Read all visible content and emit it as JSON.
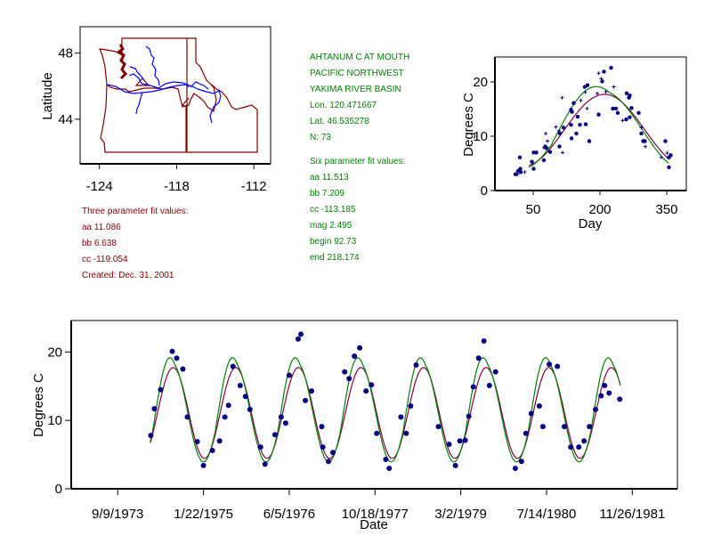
{
  "site": {
    "name": "AHTANUM C AT MOUTH",
    "region": "PACIFIC NORTHWEST",
    "basin": "YAKIMA RIVER BASIN",
    "lon": "Lon. 120.471667",
    "lat": "Lat. 46.535278",
    "n": "N: 73"
  },
  "three_param": {
    "title": "Three parameter fit values:",
    "aa": "aa 11.086",
    "bb": "bb 6.638",
    "cc": "cc -119.054",
    "created": "Created:   Dec. 31, 2001",
    "values": {
      "aa": 11.086,
      "bb": 6.638,
      "cc": -119.054
    }
  },
  "six_param": {
    "title": "Six parameter fit values:",
    "aa": "aa 11.513",
    "bb": "bb 7.209",
    "cc": "cc -113.185",
    "mag": "mag 2.495",
    "begin": "begin 92.73",
    "end": "end 218.174",
    "values": {
      "aa": 11.513,
      "bb": 7.209,
      "cc": -113.185,
      "mag": 2.495,
      "begin": 92.73,
      "end": 218.174
    }
  },
  "colors": {
    "three_param_curve": "#800040",
    "six_param_curve": "#008000",
    "points": "#000080",
    "state_borders": "#800000",
    "rivers": "#0000ff"
  },
  "chart_data": [
    {
      "type": "map",
      "title": "",
      "xlabel": "",
      "ylabel": "Latitude",
      "x_ticks": [
        "-124",
        "-118",
        "-112"
      ],
      "x_tick_values": [
        -124,
        -118,
        -112
      ],
      "y_ticks": [
        "48",
        "44"
      ],
      "y_tick_values": [
        48,
        44
      ],
      "xlim": [
        -125.5,
        -110.7
      ],
      "ylim": [
        41.3,
        49.6
      ],
      "features": [
        "Washington state outline",
        "Oregon state outline",
        "Idaho state outline",
        "Columbia and Yakima river network",
        "site marker triangle"
      ],
      "site_marker": {
        "lon": -120.47,
        "lat": 46.54
      }
    },
    {
      "type": "scatter",
      "title": "",
      "xlabel": "Day",
      "ylabel": "Degrees C",
      "x_ticks": [
        "50",
        "200",
        "350"
      ],
      "x_tick_values": [
        50,
        200,
        350
      ],
      "y_ticks": [
        "0",
        "10",
        "20"
      ],
      "y_tick_values": [
        0,
        10,
        20
      ],
      "xlim": [
        -36,
        394
      ],
      "ylim": [
        0,
        24.6
      ],
      "series_source": "points folded by day of year from time series below",
      "curves": [
        "three-parameter fit",
        "six-parameter fit"
      ],
      "curve_xrange": [
        40,
        355
      ]
    },
    {
      "type": "scatter",
      "title": "",
      "xlabel": "Date",
      "ylabel": "Degrees C",
      "x_ticks": [
        "9/9/1973",
        "1/22/1975",
        "6/5/1976",
        "10/18/1977",
        "3/2/1979",
        "7/14/1980",
        "11/26/1981"
      ],
      "x_tick_offsets_days": [
        0,
        500,
        1000,
        1500,
        2000,
        2500,
        3000
      ],
      "y_ticks": [
        "0",
        "10",
        "20"
      ],
      "y_tick_values": [
        0,
        10,
        20
      ],
      "xlim_days": [
        -271,
        3263
      ],
      "ylim": [
        0,
        24.6
      ],
      "origin_date": "9/9/1973",
      "origin_day_of_year": 252,
      "curve_range_days": [
        190,
        2930
      ],
      "points_days_value": [
        [
          193,
          7.8
        ],
        [
          214,
          11.7
        ],
        [
          250,
          14.5
        ],
        [
          318,
          20.1
        ],
        [
          344,
          19.1
        ],
        [
          380,
          17.5
        ],
        [
          406,
          10.5
        ],
        [
          464,
          6.9
        ],
        [
          500,
          3.4
        ],
        [
          552,
          5.6
        ],
        [
          594,
          7.0
        ],
        [
          625,
          10.5
        ],
        [
          646,
          12.2
        ],
        [
          672,
          17.9
        ],
        [
          714,
          15.1
        ],
        [
          745,
          13.5
        ],
        [
          771,
          11.6
        ],
        [
          833,
          6.1
        ],
        [
          859,
          3.6
        ],
        [
          917,
          7.9
        ],
        [
          953,
          10.5
        ],
        [
          979,
          9.6
        ],
        [
          1000,
          16.6
        ],
        [
          1052,
          21.9
        ],
        [
          1068,
          22.6
        ],
        [
          1094,
          12.9
        ],
        [
          1130,
          14.3
        ],
        [
          1190,
          9.1
        ],
        [
          1196,
          6.1
        ],
        [
          1229,
          4.0
        ],
        [
          1255,
          5.3
        ],
        [
          1323,
          17.1
        ],
        [
          1349,
          16.1
        ],
        [
          1380,
          19.4
        ],
        [
          1411,
          20.6
        ],
        [
          1448,
          14.3
        ],
        [
          1479,
          15.2
        ],
        [
          1510,
          8.1
        ],
        [
          1563,
          4.3
        ],
        [
          1583,
          3.0
        ],
        [
          1651,
          10.5
        ],
        [
          1682,
          8.1
        ],
        [
          1708,
          12.1
        ],
        [
          1740,
          18.1
        ],
        [
          1870,
          9.1
        ],
        [
          1932,
          6.5
        ],
        [
          1969,
          3.4
        ],
        [
          1995,
          7.0
        ],
        [
          2026,
          7.1
        ],
        [
          2047,
          10.6
        ],
        [
          2073,
          14.9
        ],
        [
          2104,
          19.1
        ],
        [
          2135,
          21.6
        ],
        [
          2167,
          15.1
        ],
        [
          2203,
          17.1
        ],
        [
          2318,
          3.0
        ],
        [
          2354,
          4.0
        ],
        [
          2380,
          8.1
        ],
        [
          2411,
          11.0
        ],
        [
          2458,
          12.1
        ],
        [
          2479,
          9.1
        ],
        [
          2516,
          18.2
        ],
        [
          2563,
          17.9
        ],
        [
          2604,
          9.1
        ],
        [
          2641,
          6.1
        ],
        [
          2688,
          6.1
        ],
        [
          2719,
          7.0
        ],
        [
          2750,
          9.1
        ],
        [
          2786,
          11.6
        ],
        [
          2818,
          13.6
        ],
        [
          2839,
          15.1
        ],
        [
          2865,
          14.0
        ],
        [
          2927,
          13.1
        ]
      ]
    }
  ]
}
